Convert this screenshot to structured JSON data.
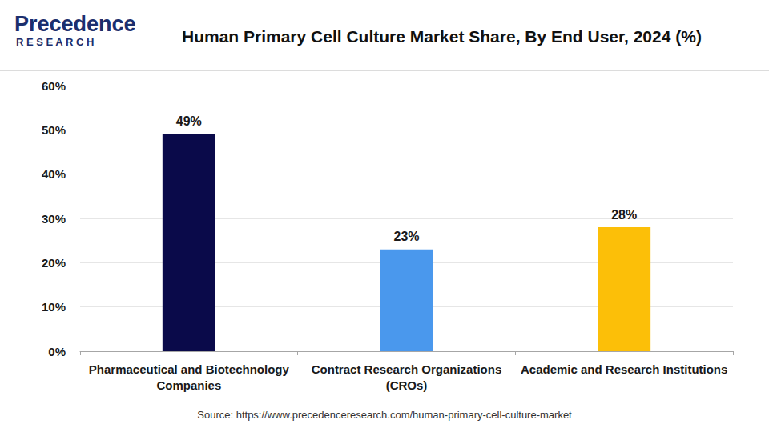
{
  "chart_data": {
    "type": "bar",
    "title": "Human Primary Cell Culture Market Share, By End User, 2024 (%)",
    "logo": [
      "Precedence",
      "RESEARCH"
    ],
    "source": "Source: https://www.precedenceresearch.com/human-primary-cell-culture-market",
    "categories": [
      "Pharmaceutical and Biotechnology\nCompanies",
      "Contract Research Organizations\n(CROs)",
      "Academic and Research Institutions"
    ],
    "values": [
      49,
      23,
      28
    ],
    "value_labels": [
      "49%",
      "23%",
      "28%"
    ],
    "colors": [
      "#0a0a4a",
      "#4a98ed",
      "#fcbf08"
    ],
    "ylim": [
      0,
      60
    ],
    "yticks": [
      {
        "value": 0,
        "label": "0%"
      },
      {
        "value": 10,
        "label": "10%"
      },
      {
        "value": 20,
        "label": "20%"
      },
      {
        "value": 30,
        "label": "30%"
      },
      {
        "value": 40,
        "label": "40%"
      },
      {
        "value": 50,
        "label": "50%"
      },
      {
        "value": 60,
        "label": "60%"
      }
    ],
    "grid": true,
    "data_labels": true
  }
}
